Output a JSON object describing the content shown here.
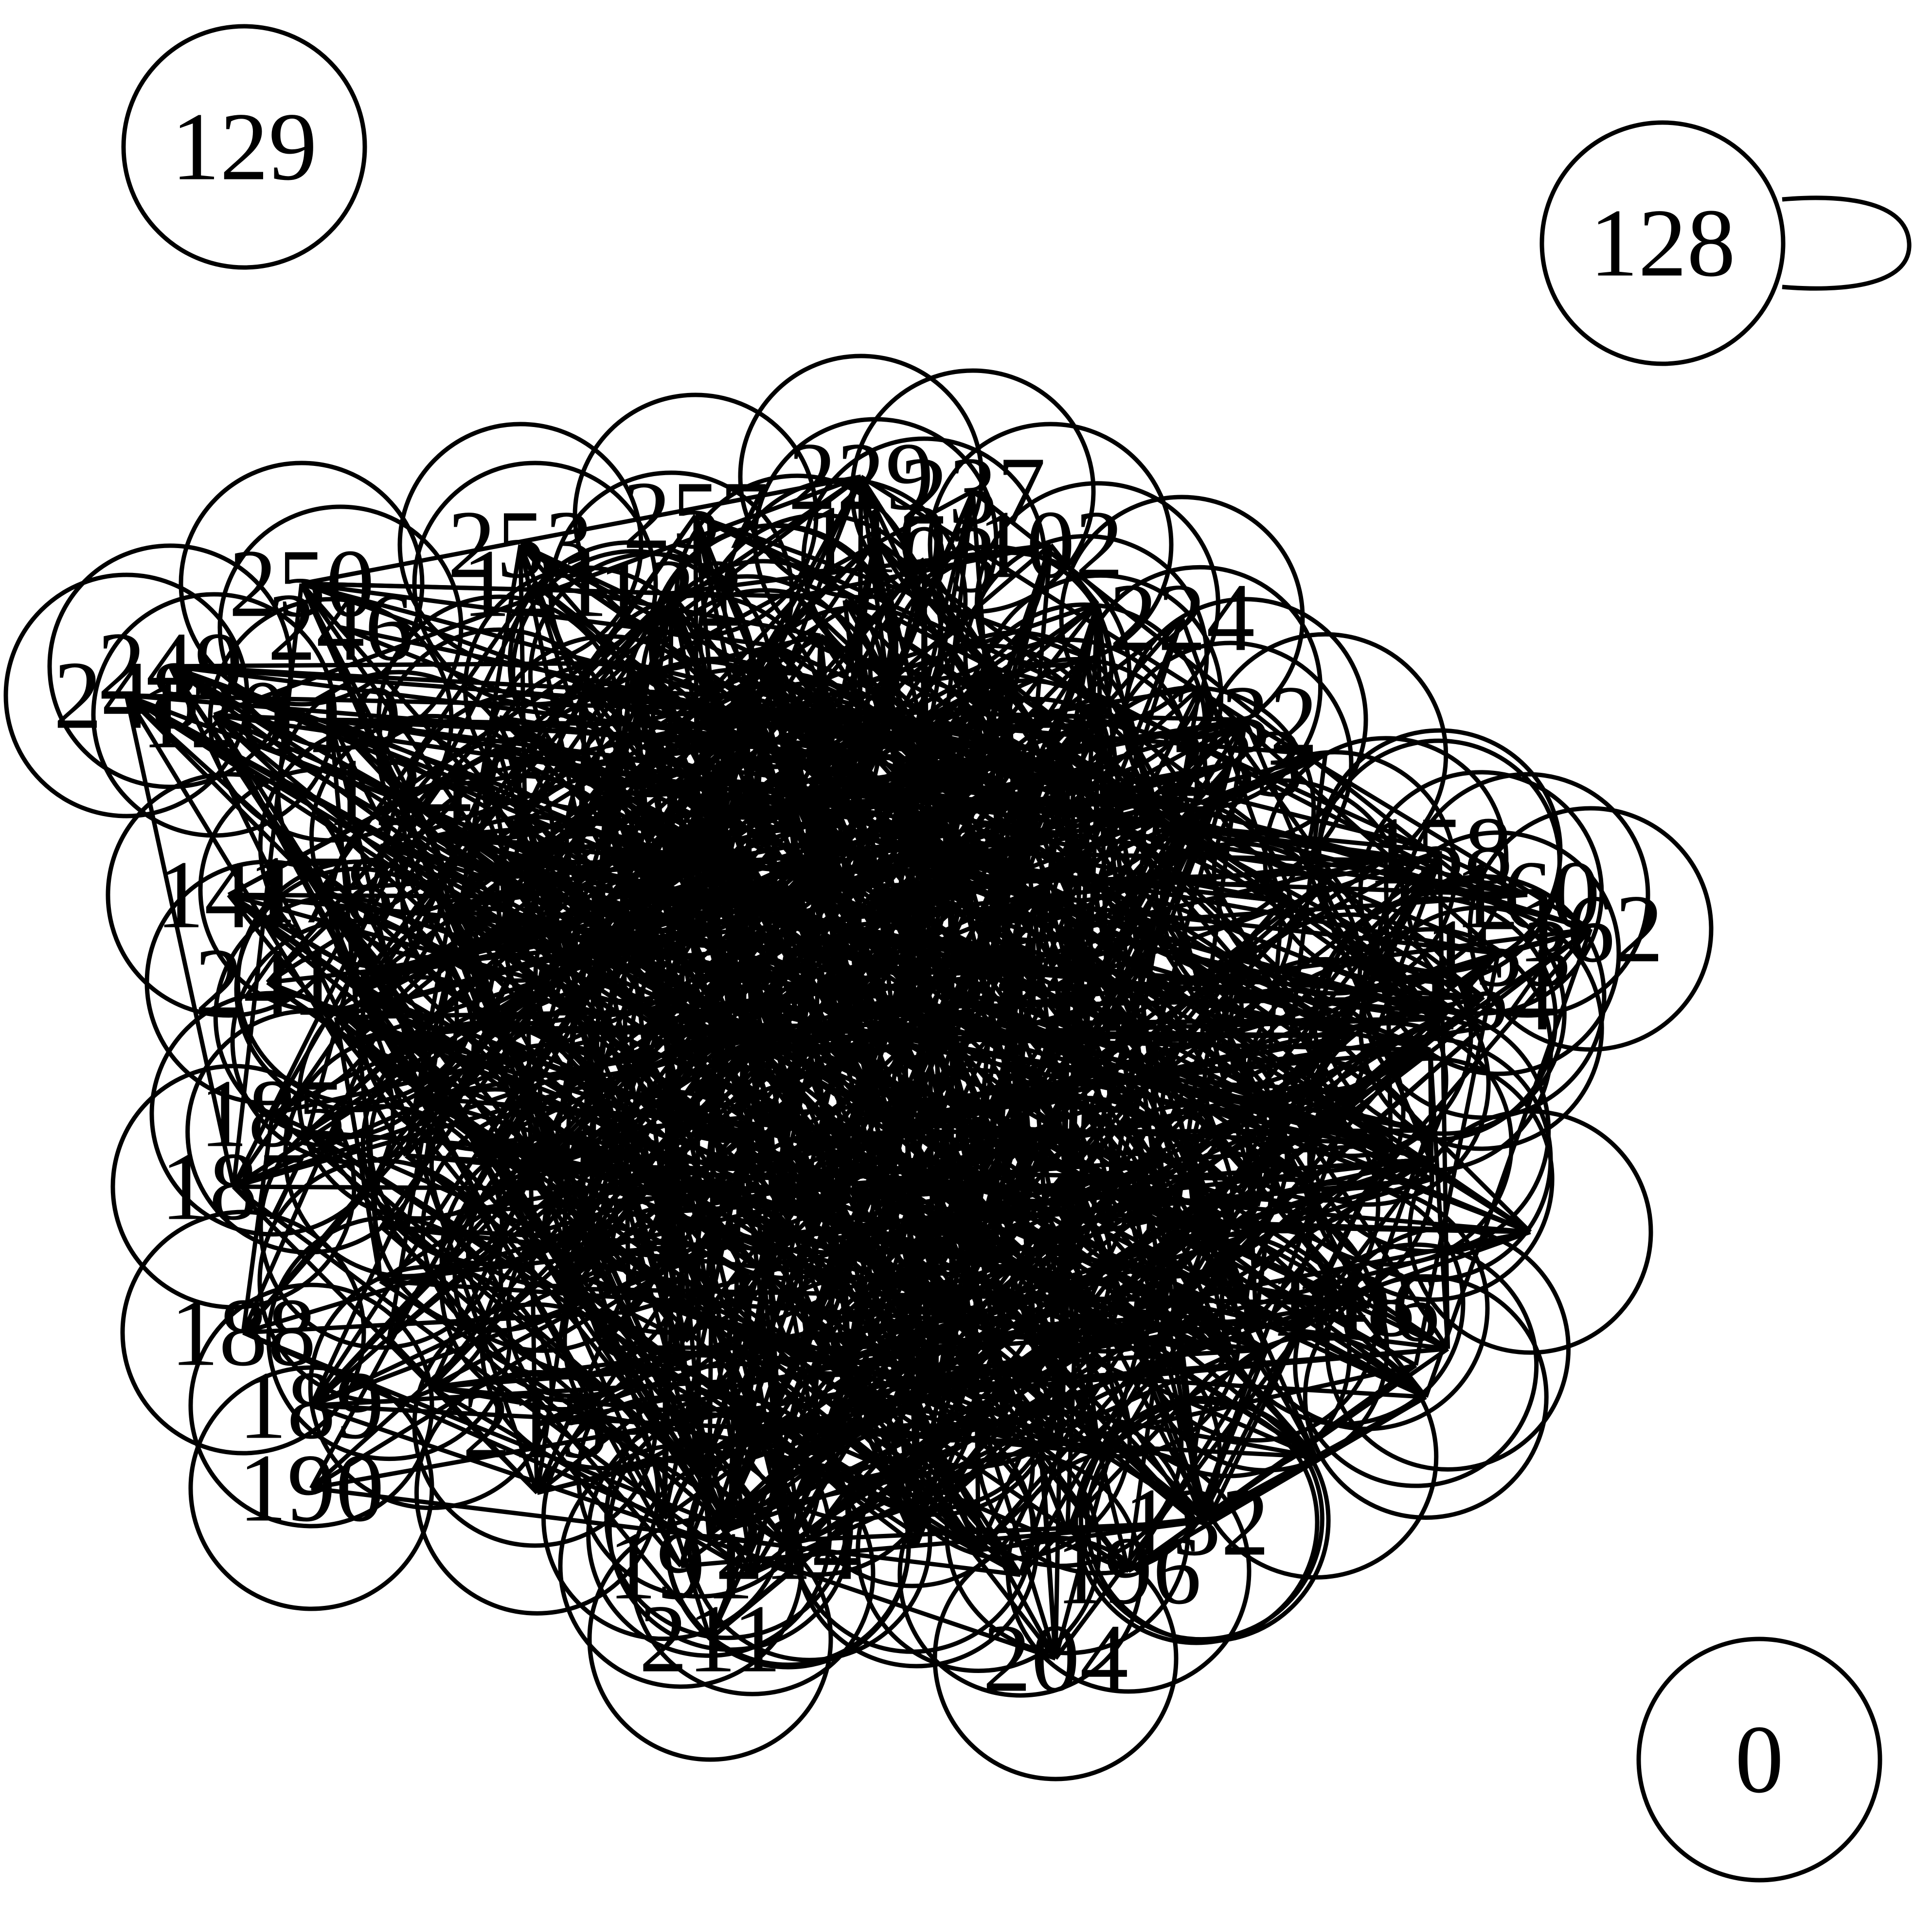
{
  "graph": {
    "stroke_color": "#000000",
    "background_color": "#ffffff",
    "isolated_nodes": [
      "129",
      "128",
      "0"
    ],
    "self_loop_nodes": [
      "128"
    ],
    "cluster_visible_labels": [
      "250",
      "253",
      "257",
      "229",
      "237",
      "110",
      "103",
      "102",
      "233",
      "232",
      "224",
      "158",
      "162",
      "160",
      "153",
      "164",
      "248",
      "249",
      "120",
      "119",
      "246",
      "121",
      "124",
      "122",
      "141",
      "178",
      "241",
      "185",
      "187",
      "188",
      "189",
      "190",
      "191",
      "211",
      "214",
      "215",
      "204",
      "196",
      "132",
      "134",
      "144",
      "148",
      "106"
    ]
  }
}
